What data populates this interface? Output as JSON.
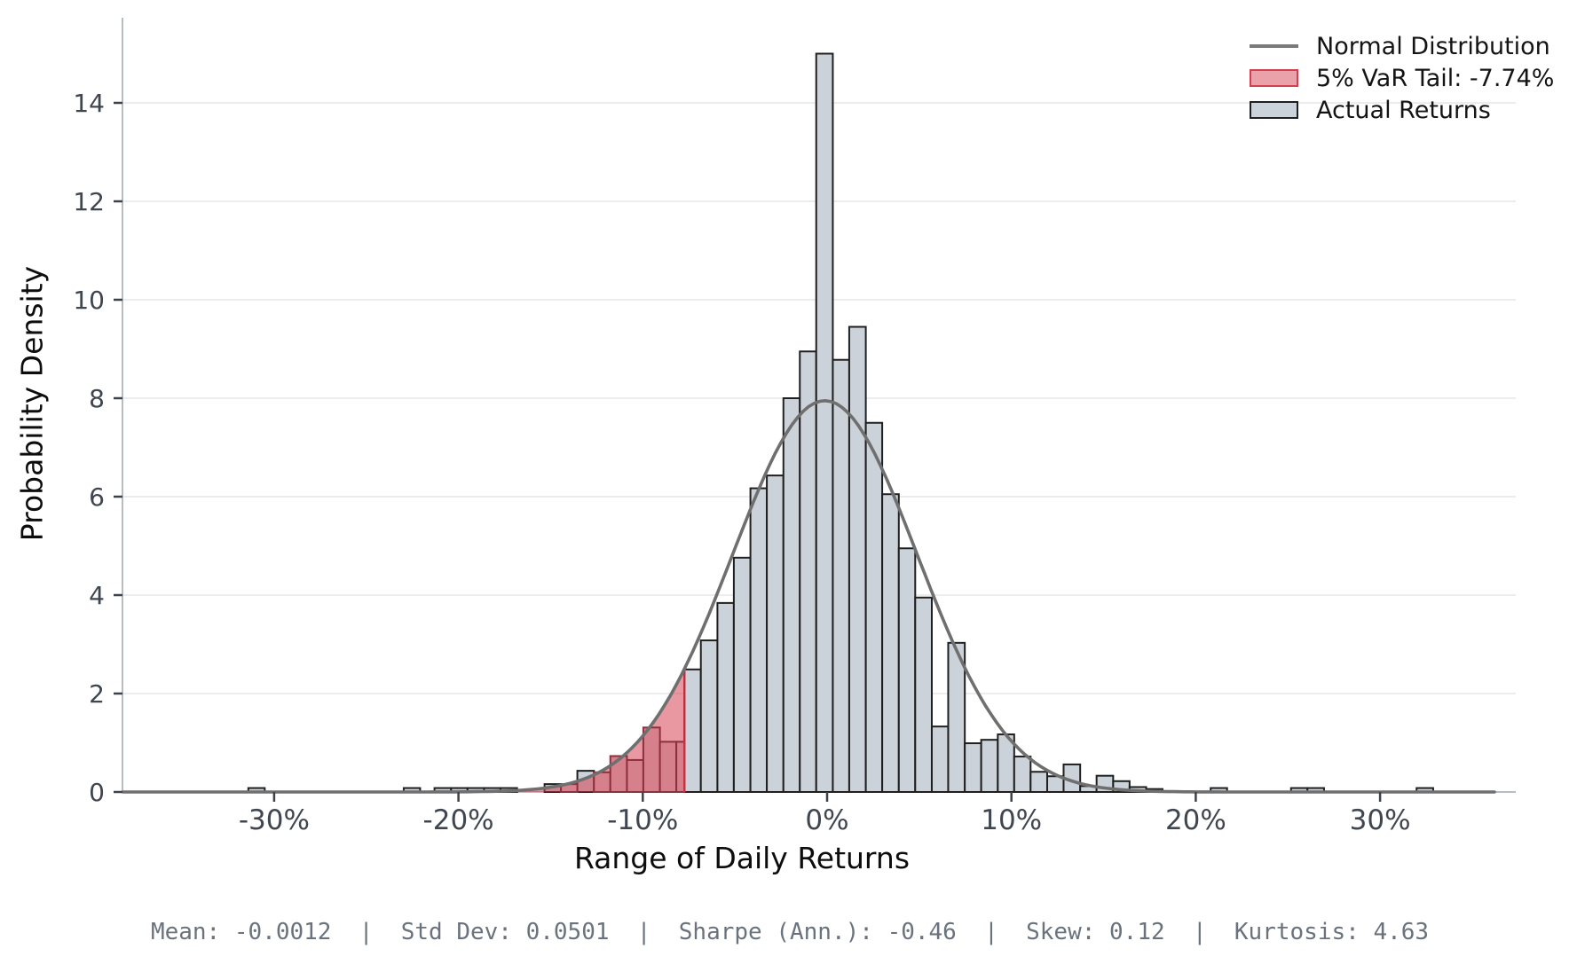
{
  "axes": {
    "xlabel": "Range of Daily Returns",
    "ylabel": "Probability Density",
    "x_tick_labels": [
      "-30%",
      "-20%",
      "-10%",
      "0%",
      "10%",
      "20%",
      "30%"
    ],
    "x_tick_values": [
      -30,
      -20,
      -10,
      0,
      10,
      20,
      30
    ],
    "y_tick_labels": [
      "0",
      "2",
      "4",
      "6",
      "8",
      "10",
      "12",
      "14"
    ],
    "y_tick_values": [
      0,
      2,
      4,
      6,
      8,
      10,
      12,
      14
    ]
  },
  "legend": {
    "items": [
      {
        "label": "Normal Distribution",
        "swatch": "line"
      },
      {
        "label": "5% VaR Tail: -7.74%",
        "swatch": "var-patch"
      },
      {
        "label": "Actual Returns",
        "swatch": "bars-patch"
      }
    ]
  },
  "footer": {
    "text": "Mean: -0.0012  |  Std Dev: 0.0501  |  Sharpe (Ann.): -0.46  |  Skew: 0.12  |  Kurtosis: 4.63",
    "stats": {
      "mean": "-0.0012",
      "std_dev": "0.0501",
      "sharpe_ann": "-0.46",
      "skew": "0.12",
      "kurtosis": "4.63"
    }
  },
  "chart_data": {
    "type": "bar",
    "subtype": "histogram-with-normal-overlay",
    "title": "",
    "xlabel": "Range of Daily Returns",
    "ylabel": "Probability Density",
    "xlim": [
      -38.2,
      36.3
    ],
    "ylim": [
      0,
      15.7
    ],
    "grid": "horizontal",
    "legend_position": "top-right",
    "var_threshold_pct": -7.74,
    "normal_curve": {
      "mu_pct": -0.12,
      "sigma_pct": 5.01,
      "peak_density": 7.95
    },
    "bins_pct_and_density": [
      [
        -31.4,
        -30.51,
        0.08,
        "g"
      ],
      [
        -22.97,
        -22.08,
        0.08,
        "g"
      ],
      [
        -21.3,
        -20.4,
        0.08,
        "g"
      ],
      [
        -20.4,
        -19.51,
        0.08,
        "g"
      ],
      [
        -19.51,
        -18.61,
        0.08,
        "g"
      ],
      [
        -18.61,
        -17.72,
        0.08,
        "g"
      ],
      [
        -17.72,
        -16.82,
        0.08,
        "g"
      ],
      [
        -15.33,
        -14.44,
        0.16,
        "g"
      ],
      [
        -14.44,
        -13.55,
        0.16,
        "r"
      ],
      [
        -13.55,
        -12.65,
        0.43,
        "g"
      ],
      [
        -12.65,
        -11.76,
        0.4,
        "r"
      ],
      [
        -11.76,
        -10.86,
        0.73,
        "r"
      ],
      [
        -10.86,
        -9.97,
        0.65,
        "r"
      ],
      [
        -9.97,
        -9.07,
        1.31,
        "r"
      ],
      [
        -9.07,
        -8.18,
        1.02,
        "r"
      ],
      [
        -8.18,
        -7.74,
        1.02,
        "r"
      ],
      [
        -7.74,
        -6.85,
        2.49,
        "g"
      ],
      [
        -6.85,
        -5.95,
        3.08,
        "g"
      ],
      [
        -5.95,
        -5.06,
        3.84,
        "g"
      ],
      [
        -5.06,
        -4.16,
        4.76,
        "g"
      ],
      [
        -4.16,
        -3.27,
        6.17,
        "g"
      ],
      [
        -3.27,
        -2.37,
        6.43,
        "g"
      ],
      [
        -2.37,
        -1.48,
        8.0,
        "g"
      ],
      [
        -1.48,
        -0.59,
        8.95,
        "g"
      ],
      [
        -0.59,
        0.31,
        15.0,
        "g"
      ],
      [
        0.31,
        1.2,
        8.78,
        "g"
      ],
      [
        1.2,
        2.1,
        9.45,
        "g"
      ],
      [
        2.1,
        2.99,
        7.5,
        "g"
      ],
      [
        2.99,
        3.89,
        6.05,
        "g"
      ],
      [
        3.89,
        4.78,
        4.95,
        "g"
      ],
      [
        4.78,
        5.68,
        3.95,
        "g"
      ],
      [
        5.68,
        6.57,
        1.33,
        "g"
      ],
      [
        6.57,
        7.47,
        3.03,
        "g"
      ],
      [
        7.47,
        8.36,
        0.99,
        "g"
      ],
      [
        8.36,
        9.26,
        1.06,
        "g"
      ],
      [
        9.26,
        10.15,
        1.17,
        "g"
      ],
      [
        10.15,
        11.04,
        0.72,
        "g"
      ],
      [
        11.04,
        11.94,
        0.41,
        "g"
      ],
      [
        11.94,
        12.83,
        0.32,
        "g"
      ],
      [
        12.83,
        13.73,
        0.56,
        "g"
      ],
      [
        13.73,
        14.62,
        0.12,
        "g"
      ],
      [
        14.62,
        15.52,
        0.33,
        "g"
      ],
      [
        15.52,
        16.41,
        0.22,
        "g"
      ],
      [
        16.41,
        17.31,
        0.1,
        "g"
      ],
      [
        17.31,
        18.2,
        0.06,
        "g"
      ],
      [
        20.81,
        21.7,
        0.08,
        "g"
      ],
      [
        25.17,
        26.06,
        0.08,
        "g"
      ],
      [
        26.06,
        26.96,
        0.08,
        "g"
      ],
      [
        31.98,
        32.88,
        0.08,
        "g"
      ]
    ],
    "colors": {
      "bar_fill": "#ccd2da",
      "bar_edge": "#1f1f1f",
      "tail_bar_fill": "#d5808b",
      "tail_bar_edge": "#8e2f3d",
      "tail_area_red": "#d32f41",
      "curve": "#6f6f6f",
      "gridline": "#e8eaee",
      "spine": "#b6bcc4",
      "tick_mark": "#3c424b",
      "tick_label": "#3f464f",
      "footer_text": "#6a737d"
    }
  }
}
